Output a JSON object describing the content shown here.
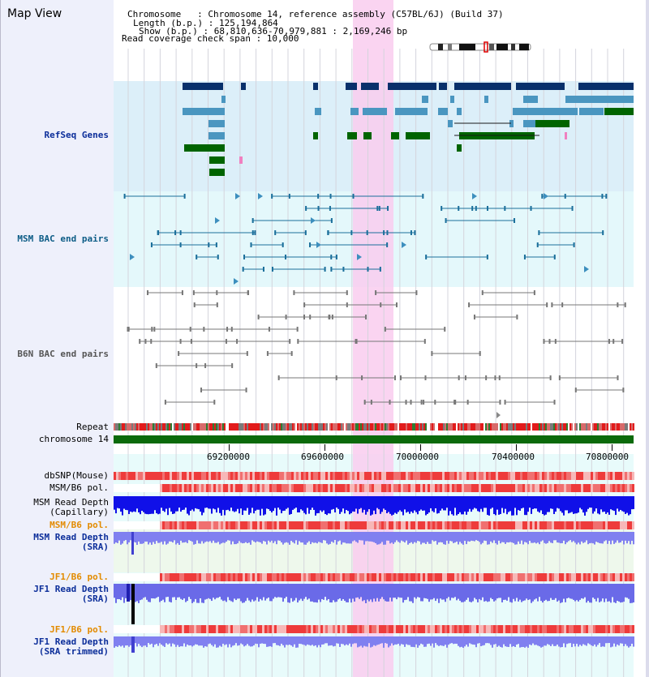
{
  "view": {
    "title": "Map View",
    "chromosome_line": "Chromosome   : Chromosome 14, reference assembly (C57BL/6J) (Build 37)",
    "length_line": "Length (b.p.) : 125,194,864",
    "show_line": "Show (b.p.) : 68,810,636-70,979,881 : 2,169,246 bp",
    "coverage_line": "Read coverage check span : 10,000"
  },
  "tracks": {
    "refseq": "RefSeq Genes",
    "msm_bac": "MSM BAC end pairs",
    "b6n_bac": "B6N BAC end pairs",
    "repeat": "Repeat",
    "chromosome": "chromosome 14",
    "dbsnp": "dbSNP(Mouse)",
    "msm_b6_pol": "MSM/B6 pol.",
    "msm_depth_cap_1": "MSM Read Depth",
    "msm_depth_cap_2": "(Capillary)",
    "msm_b6_pol_sra": "MSM/B6 pol.",
    "msm_depth_sra_1": "MSM Read Depth",
    "msm_depth_sra_2": "(SRA)",
    "jf1_b6_pol": "JF1/B6 pol.",
    "jf1_depth_sra_1": "JF1 Read Depth",
    "jf1_depth_sra_2": "(SRA)",
    "jf1_b6_pol_trim": "JF1/B6 pol.",
    "jf1_depth_trim_1": "JF1 Read Depth",
    "jf1_depth_trim_2": "(SRA trimmed)"
  },
  "ruler": {
    "labels": [
      "69200000",
      "69600000",
      "70000000",
      "70400000",
      "70800000"
    ]
  },
  "colors": {
    "refseq_dark": "#08306b",
    "refseq_light": "#4a96c0",
    "refseq_green": "#006400",
    "refseq_bg": "#dceff9",
    "msm_bac_line": "#1b6f9b",
    "msm_bac_bg": "#e4f8fb",
    "b6n_bac_line": "#777777",
    "highlight": "#f9cdee",
    "depth_capillary": "#1010e8",
    "depth_sra": "#8080f0",
    "depth_jf1": "#6a6ae8",
    "pol_red": "#ee3b3b",
    "pol_pink": "#f7b8b8",
    "chromosome_bar": "#0b6a0b"
  },
  "icons": [
    "chromosome-ideogram-icon"
  ]
}
